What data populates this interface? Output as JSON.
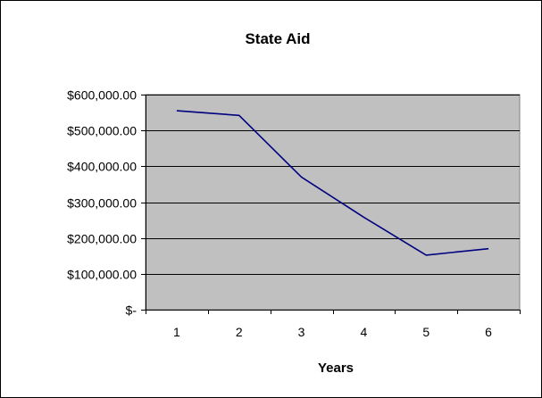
{
  "chart_data": {
    "type": "line",
    "title": "State Aid",
    "xlabel": "Years",
    "ylabel": "",
    "categories": [
      "1",
      "2",
      "3",
      "4",
      "5",
      "6"
    ],
    "series": [
      {
        "values": [
          555000,
          542000,
          370000,
          258000,
          152000,
          170000
        ]
      }
    ],
    "ylim": [
      0,
      600000
    ],
    "yticks": [
      0,
      100000,
      200000,
      300000,
      400000,
      500000,
      600000
    ],
    "ytick_labels": [
      "$-",
      "$100,000.00",
      "$200,000.00",
      "$300,000.00",
      "$400,000.00",
      "$500,000.00",
      "$600,000.00"
    ],
    "grid": true,
    "legend": "none",
    "colors": {
      "plot_background": "#c0c0c0",
      "line": "#000080",
      "gridline": "#000000"
    }
  }
}
